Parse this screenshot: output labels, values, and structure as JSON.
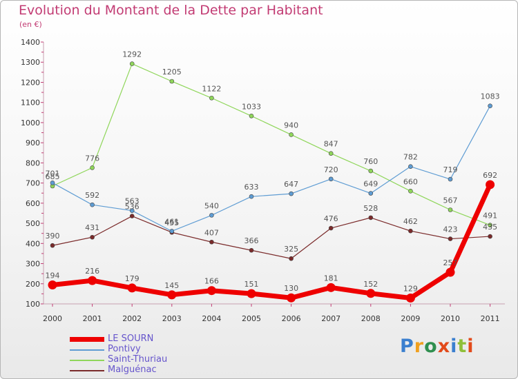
{
  "header": {
    "title": "Evolution du Montant de la Dette par Habitant",
    "subtitle": "(en €)"
  },
  "chart_data": {
    "type": "line",
    "title": "Evolution du Montant de la Dette par Habitant",
    "subtitle": "(en €)",
    "x": [
      "2000",
      "2001",
      "2002",
      "2003",
      "2004",
      "2005",
      "2006",
      "2007",
      "2008",
      "2009",
      "2010",
      "2011"
    ],
    "yticks": [
      "100",
      "200",
      "300",
      "400",
      "500",
      "600",
      "700",
      "800",
      "900",
      "1000",
      "1100",
      "1200",
      "1300",
      "1400"
    ],
    "ylim": [
      100,
      1400
    ],
    "grid": false,
    "legend_position": "bottom-left",
    "series": [
      {
        "name": "LE SOURN",
        "color": "#ee0000",
        "values": [
          194,
          216,
          179,
          145,
          166,
          151,
          130,
          181,
          152,
          129,
          257,
          692
        ]
      },
      {
        "name": "Pontivy",
        "color": "#5e9cd3",
        "values": [
          701,
          592,
          563,
          461,
          540,
          633,
          647,
          720,
          649,
          782,
          719,
          1083
        ]
      },
      {
        "name": "Saint-Thuriau",
        "color": "#8fd65a",
        "values": [
          685,
          776,
          1292,
          1205,
          1122,
          1033,
          940,
          847,
          760,
          660,
          567,
          491
        ]
      },
      {
        "name": "Malguénac",
        "color": "#7a2a2a",
        "values": [
          390,
          431,
          536,
          455,
          407,
          366,
          325,
          476,
          528,
          462,
          423,
          435
        ]
      }
    ]
  },
  "legend": {
    "items": [
      {
        "label": "LE SOURN",
        "color": "#ee0000"
      },
      {
        "label": "Pontivy",
        "color": "#5e9cd3"
      },
      {
        "label": "Saint-Thuriau",
        "color": "#8fd65a"
      },
      {
        "label": "Malguénac",
        "color": "#7a2a2a"
      }
    ]
  },
  "logo": {
    "text": "Proxiti",
    "colors": [
      "#3a7fcf",
      "#f0a020",
      "#2f8f4f",
      "#e24a1a",
      "#3a7fcf",
      "#8fbf3a",
      "#e24a1a"
    ]
  }
}
